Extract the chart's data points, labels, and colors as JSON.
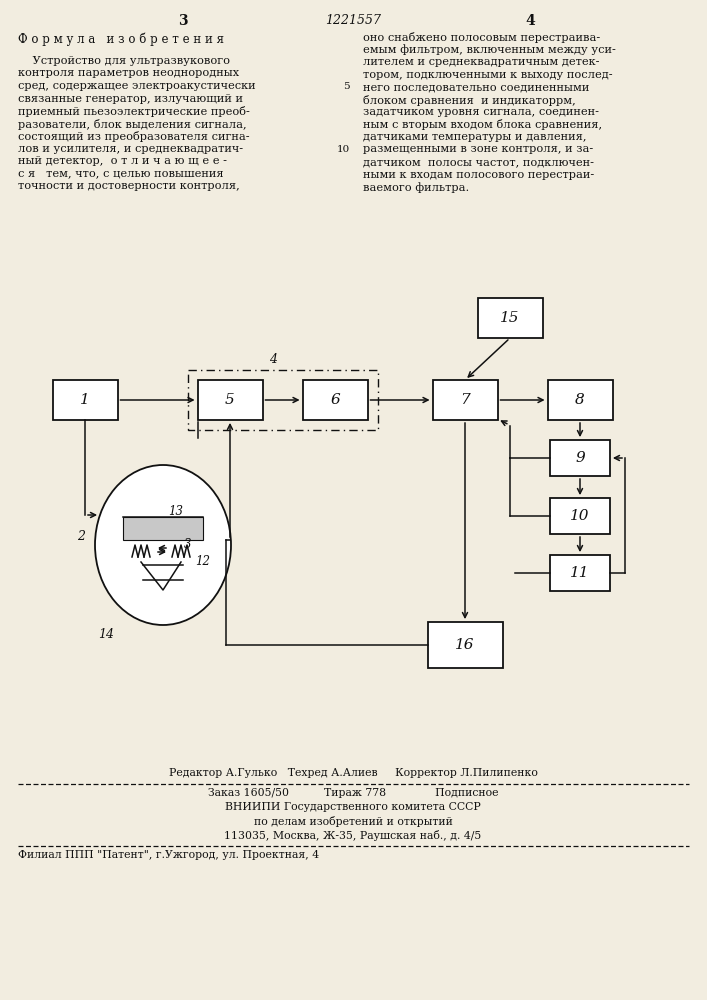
{
  "page_number_left": "3",
  "page_number_center": "1221557",
  "page_number_right": "4",
  "header_left": "Ф о р м у л а   и з о б р е т е н и я",
  "text_left_lines": [
    "    Устройство для ультразвукового",
    "контроля параметров неоднородных",
    "сред, содержащее электроакустически",
    "связанные генератор, излучающий и",
    "приемный пьезоэлектрические преоб-",
    "разователи, блок выделения сигнала,",
    "состоящий из преобразователя сигна-",
    "лов и усилителя, и среднеквадратич-",
    "ный детектор,  о т л и ч а ю щ е е -",
    "с я   тем, что, с целью повышения",
    "точности и достоверности контроля,"
  ],
  "text_right_lines": [
    "оно снабжено полосовым перестраива-",
    "емым фильтром, включенным между уси-",
    "лителем и среднеквадратичным детек-",
    "тором, подключенными к выходу послед-",
    "него последовательно соединенными",
    "блоком сравнения  и индикаторрм,",
    "задатчиком уровня сигнала, соединен-",
    "ным с вторым входом блока сравнения,",
    "датчиками температуры и давления,",
    "размещенными в зоне контроля, и за-",
    "датчиком  полосы частот, подключен-",
    "ными к входам полосового перестраи-",
    "ваемого фильтра."
  ],
  "editor_line": "Редактор А.Гулько   Техред А.Алиев     Корректор Л.Пилипенко",
  "order_line": "Заказ 1605/50          Тираж 778              Подписное",
  "vniiipi_line": "ВНИИПИ Государственного комитета СССР",
  "affairs_line": "по делам изобретений и открытий",
  "address_line": "113035, Москва, Ж-35, Раушская наб., д. 4/5",
  "filial_line": "Филиал ППП \"Патент\", г.Ужгород, ул. Проектная, 4",
  "bg_color": "#f2ede0",
  "text_color": "#111111"
}
